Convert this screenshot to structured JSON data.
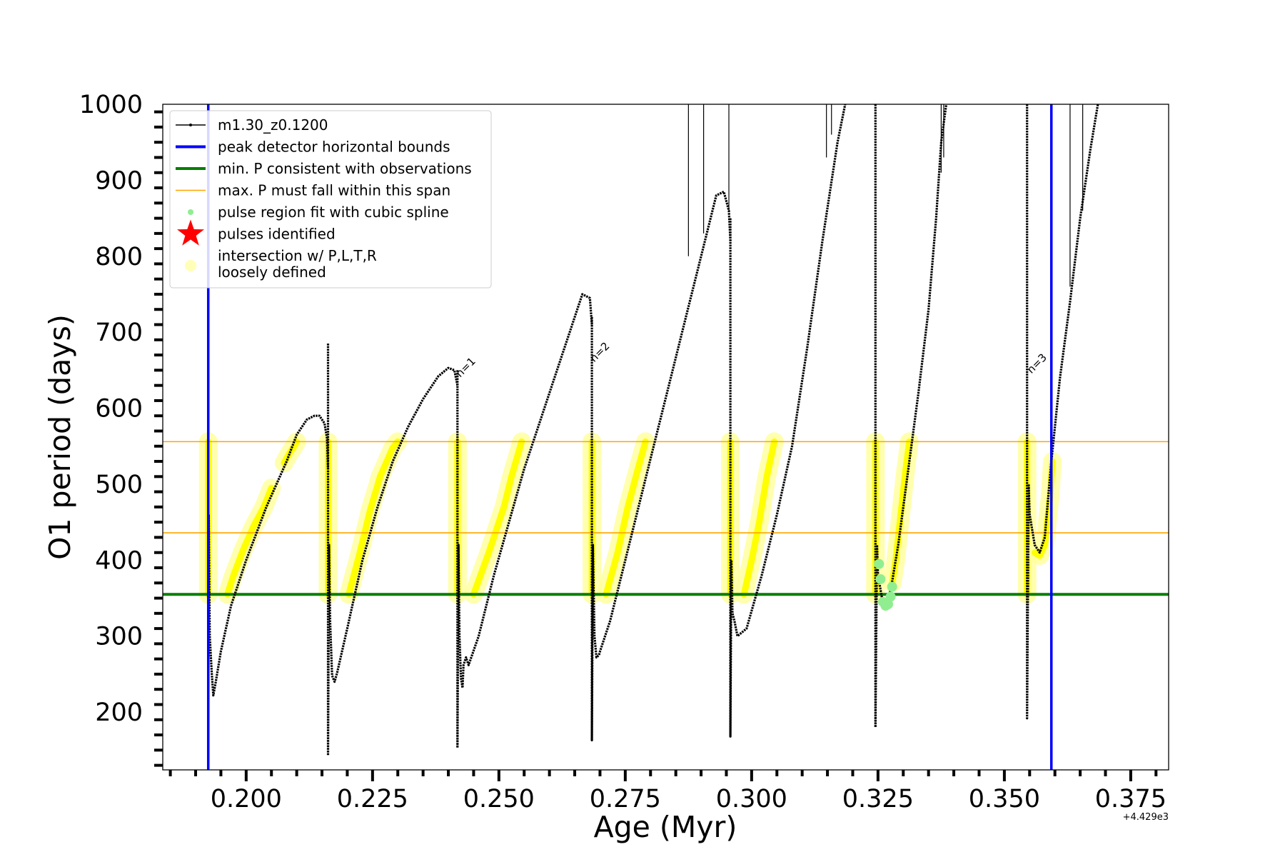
{
  "chart_data": {
    "type": "line",
    "xlabel": "Age (Myr)",
    "ylabel": "O1 period (days)",
    "x_offset_label": "+4.429e3",
    "xlim": [
      0.1835,
      0.3825
    ],
    "ylim": [
      124,
      1000
    ],
    "x_ticks": [
      {
        "value": 0.2,
        "label": "0.200"
      },
      {
        "value": 0.225,
        "label": "0.225"
      },
      {
        "value": 0.25,
        "label": "0.250"
      },
      {
        "value": 0.275,
        "label": "0.275"
      },
      {
        "value": 0.3,
        "label": "0.300"
      },
      {
        "value": 0.325,
        "label": "0.325"
      },
      {
        "value": 0.35,
        "label": "0.350"
      },
      {
        "value": 0.375,
        "label": "0.375"
      }
    ],
    "y_ticks": [
      {
        "value": 200,
        "label": "200"
      },
      {
        "value": 300,
        "label": "300"
      },
      {
        "value": 400,
        "label": "400"
      },
      {
        "value": 500,
        "label": "500"
      },
      {
        "value": 600,
        "label": "600"
      },
      {
        "value": 700,
        "label": "700"
      },
      {
        "value": 800,
        "label": "800"
      },
      {
        "value": 900,
        "label": "900"
      },
      {
        "value": 1000,
        "label": "1000"
      }
    ],
    "grid": false,
    "legend_position": "top-left",
    "legend": [
      {
        "label": "m1.30_z0.1200",
        "kind": "line-marker",
        "color": "#000000"
      },
      {
        "label": "peak detector horizontal bounds",
        "kind": "thick-line",
        "color": "#0000ff"
      },
      {
        "label": "min. P consistent with observations",
        "kind": "thick-line",
        "color": "#008000"
      },
      {
        "label": "max. P must fall within this span",
        "kind": "thin-line",
        "color": "#ffa500"
      },
      {
        "label": "pulse region fit with cubic spline",
        "kind": "dot",
        "color": "#90ee90"
      },
      {
        "label": "pulses identified",
        "kind": "star",
        "color": "#ff0000"
      },
      {
        "label": "intersection w/ P,L,T,R\nloosely defined",
        "kind": "circle",
        "color": "#ffff99"
      }
    ],
    "vertical_lines": [
      {
        "x": 0.1925,
        "color": "#0000ff",
        "role": "peak detector horizontal bounds"
      },
      {
        "x": 0.3593,
        "color": "#0000ff",
        "role": "peak detector horizontal bounds"
      }
    ],
    "horizontal_lines": [
      {
        "y": 355,
        "color": "#008000",
        "role": "min. P consistent with observations"
      },
      {
        "y": 436,
        "color": "#ffa500",
        "role": "max. P span lower"
      },
      {
        "y": 556,
        "color": "#ffa500",
        "role": "max. P span upper"
      }
    ],
    "annotations": [
      {
        "text": "n=1",
        "x": 0.2415,
        "y": 640
      },
      {
        "text": "n=2",
        "x": 0.268,
        "y": 660
      },
      {
        "text": "n=3",
        "x": 0.3545,
        "y": 645
      }
    ],
    "series": [
      {
        "name": "m1.30_z0.1200",
        "color": "#000000",
        "segments": [
          [
            [
              0.1925,
              645
            ],
            [
              0.1925,
              130
            ],
            [
              0.1926,
              460
            ],
            [
              0.1927,
              380
            ],
            [
              0.1928,
              300
            ],
            [
              0.1932,
              250
            ],
            [
              0.1935,
              222
            ],
            [
              0.194,
              240
            ],
            [
              0.195,
              280
            ],
            [
              0.197,
              340
            ],
            [
              0.2,
              400
            ],
            [
              0.204,
              470
            ],
            [
              0.208,
              530
            ],
            [
              0.21,
              565
            ],
            [
              0.212,
              585
            ],
            [
              0.2135,
              590
            ],
            [
              0.2145,
              590
            ],
            [
              0.2155,
              580
            ],
            [
              0.216,
              560
            ],
            [
              0.2162,
              520
            ]
          ],
          [
            [
              0.2162,
              685
            ],
            [
              0.2162,
              143
            ],
            [
              0.2164,
              420
            ],
            [
              0.2166,
              320
            ],
            [
              0.217,
              248
            ],
            [
              0.2175,
              240
            ],
            [
              0.218,
              252
            ],
            [
              0.22,
              310
            ],
            [
              0.223,
              400
            ],
            [
              0.226,
              470
            ],
            [
              0.229,
              530
            ],
            [
              0.232,
              575
            ],
            [
              0.235,
              612
            ],
            [
              0.238,
              642
            ],
            [
              0.24,
              653
            ],
            [
              0.2412,
              650
            ],
            [
              0.2418,
              630
            ]
          ],
          [
            [
              0.2418,
              650
            ],
            [
              0.2418,
              153
            ],
            [
              0.242,
              420
            ],
            [
              0.2422,
              300
            ],
            [
              0.2425,
              245
            ],
            [
              0.2428,
              232
            ],
            [
              0.243,
              262
            ],
            [
              0.2435,
              272
            ],
            [
              0.244,
              262
            ],
            [
              0.246,
              300
            ],
            [
              0.249,
              380
            ],
            [
              0.252,
              450
            ],
            [
              0.255,
              520
            ],
            [
              0.258,
              580
            ],
            [
              0.261,
              640
            ],
            [
              0.264,
              700
            ],
            [
              0.2665,
              750
            ],
            [
              0.268,
              745
            ],
            [
              0.2684,
              710
            ]
          ],
          [
            [
              0.2684,
              720
            ],
            [
              0.2684,
              163
            ],
            [
              0.2686,
              420
            ],
            [
              0.2689,
              300
            ],
            [
              0.2693,
              272
            ],
            [
              0.2698,
              275
            ],
            [
              0.27,
              280
            ],
            [
              0.272,
              320
            ],
            [
              0.275,
              400
            ],
            [
              0.278,
              480
            ],
            [
              0.281,
              560
            ],
            [
              0.284,
              640
            ],
            [
              0.287,
              720
            ],
            [
              0.29,
              800
            ],
            [
              0.293,
              880
            ],
            [
              0.2945,
              885
            ],
            [
              0.2955,
              860
            ],
            [
              0.2958,
              820
            ]
          ],
          [
            [
              0.2958,
              850
            ],
            [
              0.2958,
              168
            ],
            [
              0.296,
              400
            ],
            [
              0.2962,
              330
            ],
            [
              0.2966,
              320
            ],
            [
              0.2972,
              300
            ],
            [
              0.299,
              310
            ],
            [
              0.302,
              380
            ],
            [
              0.305,
              460
            ],
            [
              0.308,
              550
            ],
            [
              0.311,
              680
            ],
            [
              0.314,
              820
            ],
            [
              0.317,
              950
            ],
            [
              0.3185,
              1000
            ]
          ],
          [
            [
              0.3245,
              1000
            ],
            [
              0.3245,
              180
            ],
            [
              0.3248,
              420
            ],
            [
              0.325,
              380
            ],
            [
              0.3258,
              350
            ],
            [
              0.3265,
              345
            ],
            [
              0.3275,
              360
            ],
            [
              0.329,
              420
            ],
            [
              0.331,
              520
            ],
            [
              0.333,
              620
            ],
            [
              0.335,
              730
            ],
            [
              0.3365,
              850
            ],
            [
              0.3375,
              950
            ],
            [
              0.3385,
              1000
            ]
          ],
          [
            [
              0.3545,
              1000
            ],
            [
              0.3545,
              192
            ],
            [
              0.3548,
              500
            ],
            [
              0.355,
              460
            ],
            [
              0.356,
              420
            ],
            [
              0.357,
              410
            ],
            [
              0.358,
              430
            ],
            [
              0.3593,
              530
            ],
            [
              0.361,
              640
            ],
            [
              0.363,
              740
            ],
            [
              0.365,
              850
            ],
            [
              0.367,
              940
            ],
            [
              0.3685,
              1000
            ]
          ]
        ],
        "spikes": [
          {
            "x": 0.2875,
            "y_from": 800,
            "y_to": 1000
          },
          {
            "x": 0.2905,
            "y_from": 830,
            "y_to": 1000
          },
          {
            "x": 0.2955,
            "y_from": 860,
            "y_to": 1000
          },
          {
            "x": 0.3148,
            "y_from": 930,
            "y_to": 1000
          },
          {
            "x": 0.3158,
            "y_from": 960,
            "y_to": 1000
          },
          {
            "x": 0.3375,
            "y_from": 910,
            "y_to": 1000
          },
          {
            "x": 0.338,
            "y_from": 930,
            "y_to": 1000
          },
          {
            "x": 0.363,
            "y_from": 760,
            "y_to": 1000
          },
          {
            "x": 0.3655,
            "y_from": 860,
            "y_to": 1000
          }
        ]
      },
      {
        "name": "pulse region fit with cubic spline",
        "color": "#90ee90",
        "points": [
          [
            0.326,
            345
          ],
          [
            0.3265,
            340
          ],
          [
            0.327,
            342
          ],
          [
            0.3275,
            352
          ],
          [
            0.3278,
            365
          ],
          [
            0.3255,
            375
          ],
          [
            0.3252,
            395
          ]
        ]
      },
      {
        "name": "intersection w/ P,L,T,R loosely defined",
        "color": "#ffff00",
        "segments": [
          [
            [
              0.1925,
              355
            ],
            [
              0.1925,
              556
            ]
          ],
          [
            [
              0.1963,
              355
            ],
            [
              0.1975,
              380
            ],
            [
              0.1995,
              415
            ],
            [
              0.2015,
              445
            ],
            [
              0.2035,
              470
            ],
            [
              0.205,
              495
            ]
          ],
          [
            [
              0.2075,
              528
            ],
            [
              0.2085,
              540
            ],
            [
              0.2095,
              550
            ],
            [
              0.21,
              556
            ]
          ],
          [
            [
              0.2162,
              355
            ],
            [
              0.2162,
              556
            ]
          ],
          [
            [
              0.2203,
              355
            ],
            [
              0.2225,
              410
            ],
            [
              0.2245,
              465
            ],
            [
              0.2265,
              510
            ],
            [
              0.229,
              548
            ],
            [
              0.23,
              556
            ]
          ],
          [
            [
              0.2418,
              355
            ],
            [
              0.2418,
              556
            ]
          ],
          [
            [
              0.245,
              355
            ],
            [
              0.248,
              410
            ],
            [
              0.251,
              470
            ],
            [
              0.2525,
              510
            ],
            [
              0.2545,
              556
            ]
          ],
          [
            [
              0.2684,
              355
            ],
            [
              0.2684,
              556
            ]
          ],
          [
            [
              0.2712,
              355
            ],
            [
              0.2735,
              410
            ],
            [
              0.2755,
              470
            ],
            [
              0.2775,
              520
            ],
            [
              0.279,
              556
            ]
          ],
          [
            [
              0.2958,
              355
            ],
            [
              0.2958,
              556
            ]
          ],
          [
            [
              0.2985,
              355
            ],
            [
              0.3,
              400
            ],
            [
              0.3015,
              450
            ],
            [
              0.303,
              510
            ],
            [
              0.3045,
              556
            ]
          ],
          [
            [
              0.3245,
              556
            ],
            [
              0.3245,
              355
            ]
          ],
          [
            [
              0.3278,
              370
            ],
            [
              0.3285,
              400
            ],
            [
              0.3295,
              460
            ],
            [
              0.3305,
              520
            ],
            [
              0.3312,
              556
            ]
          ],
          [
            [
              0.3545,
              556
            ],
            [
              0.3545,
              355
            ]
          ],
          [
            [
              0.356,
              410
            ],
            [
              0.357,
              406
            ],
            [
              0.358,
              420
            ],
            [
              0.359,
              480
            ],
            [
              0.3595,
              530
            ]
          ]
        ]
      }
    ]
  }
}
